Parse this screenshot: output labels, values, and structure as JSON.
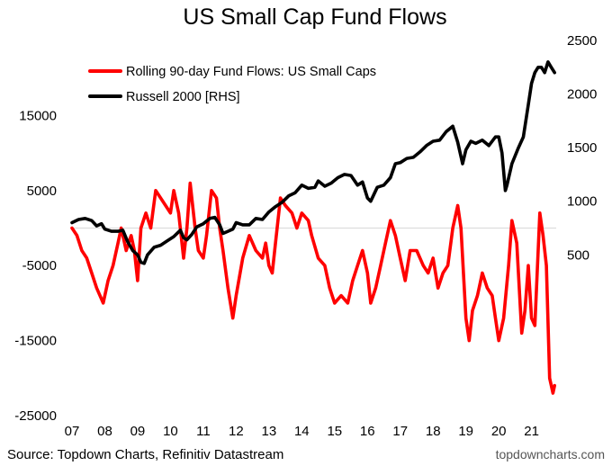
{
  "chart_data": {
    "type": "line",
    "title": "US Small Cap Fund Flows",
    "source": "Source: Topdown Charts, Refinitiv Datastream",
    "watermark": "topdowncharts.com",
    "xlabel": "",
    "ylabel": "",
    "x_ticks": [
      "07",
      "08",
      "09",
      "10",
      "11",
      "12",
      "13",
      "14",
      "15",
      "16",
      "17",
      "18",
      "19",
      "20",
      "21"
    ],
    "left_axis": {
      "ylim": [
        -25000,
        25000
      ],
      "ticks": [
        15000,
        5000,
        -5000,
        -15000,
        -25000
      ]
    },
    "right_axis": {
      "ylim": [
        -1000,
        2500
      ],
      "ticks": [
        2500,
        2000,
        1500,
        1000,
        500
      ]
    },
    "zero_line": true,
    "grid": false,
    "legend_position": "top-left",
    "series": [
      {
        "name": "Rolling 90-day Fund Flows: US Small Caps",
        "axis": "left",
        "color": "#ff0000",
        "x": [
          2007.0,
          2007.15,
          2007.3,
          2007.45,
          2007.6,
          2007.75,
          2007.95,
          2008.1,
          2008.25,
          2008.4,
          2008.5,
          2008.65,
          2008.8,
          2008.9,
          2009.0,
          2009.1,
          2009.25,
          2009.4,
          2009.55,
          2009.7,
          2009.85,
          2010.0,
          2010.1,
          2010.25,
          2010.4,
          2010.5,
          2010.6,
          2010.75,
          2010.85,
          2011.0,
          2011.1,
          2011.25,
          2011.4,
          2011.5,
          2011.6,
          2011.75,
          2011.9,
          2012.0,
          2012.2,
          2012.4,
          2012.6,
          2012.8,
          2012.9,
          2013.0,
          2013.1,
          2013.2,
          2013.35,
          2013.5,
          2013.7,
          2013.85,
          2014.0,
          2014.2,
          2014.3,
          2014.5,
          2014.7,
          2014.85,
          2015.0,
          2015.2,
          2015.4,
          2015.55,
          2015.7,
          2015.85,
          2016.0,
          2016.1,
          2016.25,
          2016.4,
          2016.55,
          2016.7,
          2016.85,
          2017.0,
          2017.15,
          2017.3,
          2017.5,
          2017.7,
          2017.85,
          2018.0,
          2018.15,
          2018.3,
          2018.45,
          2018.6,
          2018.75,
          2018.85,
          2019.0,
          2019.1,
          2019.2,
          2019.35,
          2019.5,
          2019.65,
          2019.8,
          2019.9,
          2020.0,
          2020.15,
          2020.3,
          2020.4,
          2020.55,
          2020.7,
          2020.8,
          2020.9,
          2021.0,
          2021.1,
          2021.25,
          2021.35,
          2021.45,
          2021.55,
          2021.65,
          2021.7
        ],
        "values": [
          0,
          -1000,
          -3000,
          -4000,
          -6000,
          -8000,
          -10000,
          -7000,
          -5000,
          -2000,
          0,
          -3000,
          -1000,
          -3000,
          -7000,
          0,
          2000,
          0,
          5000,
          4000,
          3000,
          2000,
          5000,
          2000,
          -4000,
          0,
          6000,
          0,
          -3000,
          -4000,
          -1000,
          5000,
          4000,
          0,
          -3000,
          -8000,
          -12000,
          -9000,
          -4000,
          -1000,
          -3000,
          -4000,
          -2000,
          -5000,
          -6000,
          -2000,
          4000,
          3000,
          2000,
          0,
          2000,
          1000,
          -1000,
          -4000,
          -5000,
          -8000,
          -10000,
          -9000,
          -10000,
          -7000,
          -5000,
          -3000,
          -6000,
          -10000,
          -8000,
          -5000,
          -2000,
          1000,
          -1000,
          -4000,
          -7000,
          -3000,
          -3000,
          -5000,
          -6000,
          -4000,
          -8000,
          -6000,
          -5000,
          0,
          3000,
          0,
          -12000,
          -15000,
          -11000,
          -9000,
          -6000,
          -8000,
          -9000,
          -12000,
          -15000,
          -12000,
          -5000,
          1000,
          -2000,
          -14000,
          -11000,
          -5000,
          -12000,
          -13000,
          2000,
          -1000,
          -5000,
          -20000,
          -22000,
          -21000
        ]
      },
      {
        "name": "Russell 2000 [RHS]",
        "axis": "right",
        "color": "#000000",
        "x": [
          2007.0,
          2007.2,
          2007.4,
          2007.6,
          2007.75,
          2007.9,
          2008.0,
          2008.2,
          2008.4,
          2008.55,
          2008.7,
          2008.85,
          2009.0,
          2009.1,
          2009.2,
          2009.3,
          2009.5,
          2009.7,
          2009.9,
          2010.1,
          2010.3,
          2010.4,
          2010.5,
          2010.65,
          2010.8,
          2011.0,
          2011.2,
          2011.35,
          2011.5,
          2011.6,
          2011.75,
          2011.9,
          2012.0,
          2012.2,
          2012.4,
          2012.6,
          2012.8,
          2013.0,
          2013.2,
          2013.4,
          2013.6,
          2013.8,
          2014.0,
          2014.2,
          2014.4,
          2014.5,
          2014.7,
          2014.9,
          2015.1,
          2015.3,
          2015.5,
          2015.7,
          2015.85,
          2016.0,
          2016.1,
          2016.3,
          2016.5,
          2016.7,
          2016.85,
          2017.0,
          2017.2,
          2017.4,
          2017.6,
          2017.8,
          2018.0,
          2018.2,
          2018.4,
          2018.6,
          2018.75,
          2018.9,
          2019.0,
          2019.15,
          2019.3,
          2019.5,
          2019.7,
          2019.9,
          2020.0,
          2020.1,
          2020.2,
          2020.25,
          2020.4,
          2020.6,
          2020.75,
          2020.9,
          2021.0,
          2021.1,
          2021.2,
          2021.3,
          2021.4,
          2021.5,
          2021.6,
          2021.7
        ],
        "values": [
          800,
          830,
          840,
          820,
          770,
          790,
          740,
          720,
          720,
          730,
          620,
          540,
          500,
          430,
          420,
          500,
          570,
          590,
          630,
          670,
          730,
          660,
          640,
          690,
          760,
          790,
          840,
          850,
          780,
          700,
          720,
          740,
          800,
          780,
          780,
          840,
          830,
          900,
          950,
          990,
          1050,
          1080,
          1150,
          1120,
          1130,
          1190,
          1140,
          1170,
          1220,
          1250,
          1240,
          1150,
          1180,
          1030,
          1000,
          1130,
          1150,
          1220,
          1350,
          1360,
          1400,
          1410,
          1460,
          1520,
          1560,
          1570,
          1650,
          1700,
          1550,
          1350,
          1480,
          1560,
          1540,
          1570,
          1520,
          1600,
          1600,
          1450,
          1100,
          1150,
          1350,
          1500,
          1600,
          1900,
          2100,
          2200,
          2250,
          2250,
          2200,
          2300,
          2250,
          2200
        ]
      }
    ]
  }
}
